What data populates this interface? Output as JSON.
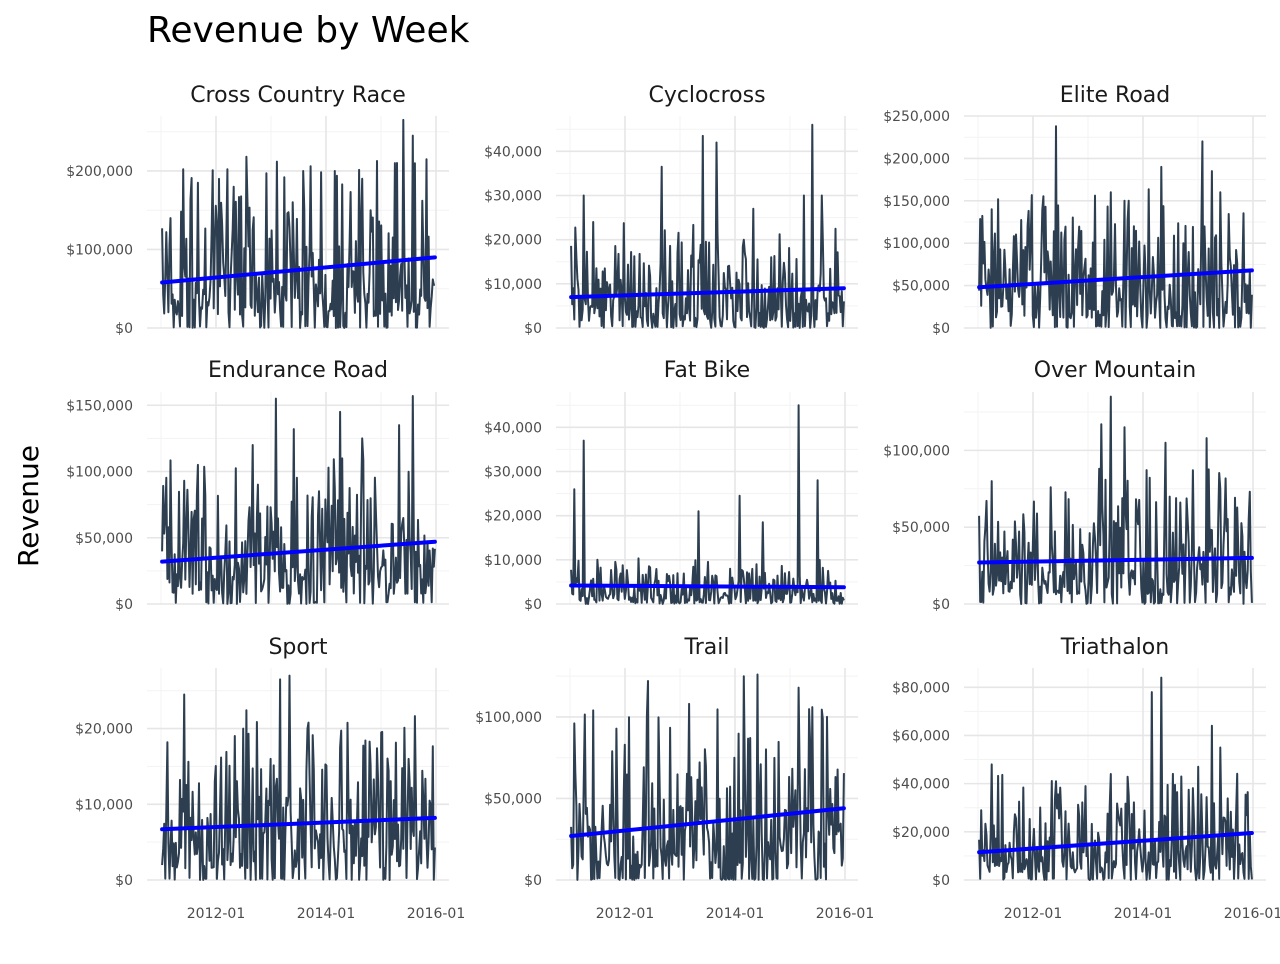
{
  "chart_data": {
    "type": "line",
    "title": "Revenue by Week",
    "ylabel": "Revenue",
    "xlabel": "",
    "x_range": [
      "2011-01",
      "2016-01"
    ],
    "x_ticks": [
      "2012-01",
      "2014-01",
      "2016-01"
    ],
    "grid": true,
    "series_color": "#2c3e50",
    "trend_color": "#0000ff",
    "facets": [
      {
        "title": "Cross Country Race",
        "ylim": [
          0,
          270000
        ],
        "y_ticks": [
          0,
          100000,
          200000
        ],
        "y_tick_labels": [
          "$0",
          "$100,000",
          "$200,000"
        ],
        "trend": [
          58000,
          90000
        ],
        "base": 75000,
        "peaks": [
          [
            "2011-03",
            140000
          ],
          [
            "2011-09",
            185000
          ],
          [
            "2012-05",
            180000
          ],
          [
            "2012-12",
            197000
          ],
          [
            "2013-04",
            192000
          ],
          [
            "2013-08",
            200000
          ],
          [
            "2014-03",
            200000
          ],
          [
            "2014-09",
            190000
          ],
          [
            "2015-04",
            210000
          ],
          [
            "2015-06",
            265000
          ],
          [
            "2015-08",
            245000
          ]
        ]
      },
      {
        "title": "Cyclocross",
        "ylim": [
          0,
          48000
        ],
        "y_ticks": [
          0,
          10000,
          20000,
          30000,
          40000
        ],
        "y_tick_labels": [
          "$0",
          "$10,000",
          "$20,000",
          "$30,000",
          "$40,000"
        ],
        "trend": [
          7000,
          9000
        ],
        "base": 8000,
        "peaks": [
          [
            "2011-04",
            30000
          ],
          [
            "2011-06",
            24000
          ],
          [
            "2012-09",
            36500
          ],
          [
            "2013-06",
            43500
          ],
          [
            "2013-09",
            42000
          ],
          [
            "2014-05",
            27000
          ],
          [
            "2015-04",
            30000
          ],
          [
            "2015-06",
            46000
          ],
          [
            "2015-08",
            30000
          ]
        ]
      },
      {
        "title": "Elite Road",
        "ylim": [
          0,
          250000
        ],
        "y_ticks": [
          0,
          50000,
          100000,
          150000,
          200000,
          250000
        ],
        "y_tick_labels": [
          "$0",
          "$50,000",
          "$100,000",
          "$150,000",
          "$200,000",
          "$250,000"
        ],
        "trend": [
          48000,
          68000
        ],
        "base": 55000,
        "peaks": [
          [
            "2011-04",
            140000
          ],
          [
            "2012-06",
            238000
          ],
          [
            "2013-06",
            160000
          ],
          [
            "2013-09",
            150000
          ],
          [
            "2014-05",
            190000
          ],
          [
            "2015-02",
            220000
          ],
          [
            "2015-04",
            185000
          ],
          [
            "2015-06",
            160000
          ]
        ]
      },
      {
        "title": "Endurance Road",
        "ylim": [
          0,
          160000
        ],
        "y_ticks": [
          0,
          50000,
          100000,
          150000
        ],
        "y_tick_labels": [
          "$0",
          "$50,000",
          "$100,000",
          "$150,000"
        ],
        "trend": [
          32000,
          47000
        ],
        "base": 38000,
        "peaks": [
          [
            "2011-06",
            93000
          ],
          [
            "2011-09",
            105000
          ],
          [
            "2012-09",
            120000
          ],
          [
            "2013-02",
            155000
          ],
          [
            "2013-06",
            132000
          ],
          [
            "2014-04",
            145000
          ],
          [
            "2014-09",
            125000
          ],
          [
            "2015-05",
            135000
          ],
          [
            "2015-08",
            157000
          ]
        ]
      },
      {
        "title": "Fat Bike",
        "ylim": [
          0,
          48000
        ],
        "y_ticks": [
          0,
          10000,
          20000,
          30000,
          40000
        ],
        "y_tick_labels": [
          "$0",
          "$10,000",
          "$20,000",
          "$30,000",
          "$40,000"
        ],
        "trend": [
          4200,
          3800
        ],
        "base": 3500,
        "peaks": [
          [
            "2011-02",
            26000
          ],
          [
            "2011-04",
            37000
          ],
          [
            "2011-07",
            10000
          ],
          [
            "2013-05",
            21000
          ],
          [
            "2014-02",
            24500
          ],
          [
            "2014-07",
            18500
          ],
          [
            "2015-03",
            45000
          ],
          [
            "2015-07",
            28000
          ]
        ]
      },
      {
        "title": "Over Mountain",
        "ylim": [
          0,
          138000
        ],
        "y_ticks": [
          0,
          50000,
          100000
        ],
        "y_tick_labels": [
          "$0",
          "$50,000",
          "$100,000"
        ],
        "trend": [
          27000,
          30000
        ],
        "base": 30000,
        "peaks": [
          [
            "2011-04",
            80000
          ],
          [
            "2012-05",
            76000
          ],
          [
            "2013-04",
            117000
          ],
          [
            "2013-06",
            135000
          ],
          [
            "2013-09",
            115000
          ],
          [
            "2014-06",
            105000
          ],
          [
            "2015-03",
            108000
          ],
          [
            "2015-06",
            75000
          ]
        ]
      },
      {
        "title": "Sport",
        "ylim": [
          0,
          28000
        ],
        "y_ticks": [
          0,
          10000,
          20000
        ],
        "y_tick_labels": [
          "$0",
          "$10,000",
          "$20,000"
        ],
        "trend": [
          6700,
          8200
        ],
        "base": 7500,
        "peaks": [
          [
            "2011-06",
            24500
          ],
          [
            "2012-07",
            20000
          ],
          [
            "2013-03",
            26500
          ],
          [
            "2013-05",
            27000
          ],
          [
            "2013-09",
            20000
          ],
          [
            "2014-04",
            17500
          ],
          [
            "2015-01",
            19500
          ],
          [
            "2015-07",
            16000
          ]
        ]
      },
      {
        "title": "Trail",
        "ylim": [
          0,
          130000
        ],
        "y_ticks": [
          0,
          50000,
          100000
        ],
        "y_tick_labels": [
          "$0",
          "$50,000",
          "$100,000"
        ],
        "trend": [
          27000,
          44000
        ],
        "base": 35000,
        "peaks": [
          [
            "2011-02",
            96000
          ],
          [
            "2011-06",
            104000
          ],
          [
            "2012-06",
            122000
          ],
          [
            "2013-03",
            108000
          ],
          [
            "2014-03",
            125000
          ],
          [
            "2014-06",
            126000
          ],
          [
            "2015-03",
            118000
          ],
          [
            "2015-06",
            106000
          ],
          [
            "2015-09",
            100000
          ]
        ]
      },
      {
        "title": "Triathalon",
        "ylim": [
          0,
          88000
        ],
        "y_ticks": [
          0,
          20000,
          40000,
          60000,
          80000
        ],
        "y_tick_labels": [
          "$0",
          "$20,000",
          "$40,000",
          "$60,000",
          "$80,000"
        ],
        "trend": [
          11500,
          19500
        ],
        "base": 15000,
        "peaks": [
          [
            "2011-04",
            48000
          ],
          [
            "2012-06",
            41000
          ],
          [
            "2013-06",
            44000
          ],
          [
            "2014-03",
            78000
          ],
          [
            "2014-05",
            84000
          ],
          [
            "2015-01",
            47000
          ],
          [
            "2015-04",
            64000
          ],
          [
            "2015-06",
            55000
          ]
        ]
      }
    ]
  }
}
